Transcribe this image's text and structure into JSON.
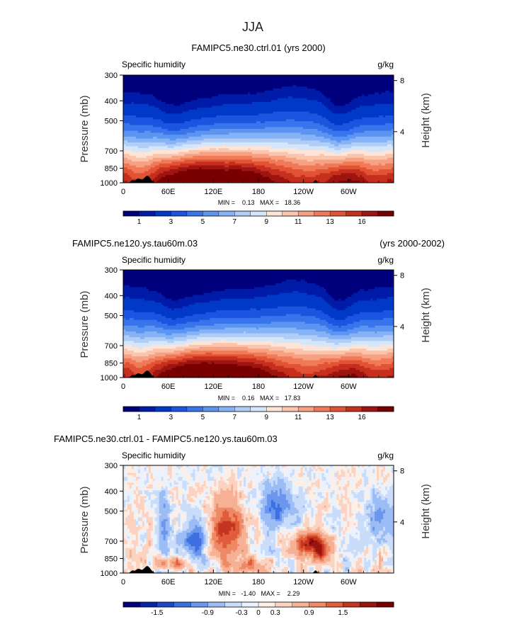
{
  "page_title": "JJA",
  "panels": [
    {
      "title_left": "FAMIPC5.ne30.ctrl.01 (yrs 2000)",
      "title_right": "",
      "var_left": "Specific humidity",
      "var_right": "g/kg",
      "ylabel": "Pressure (mb)",
      "y2label": "Height (km)",
      "minmax": "MIN =    0.13   MAX =   18.36",
      "colorbar_labels": [
        "1",
        "3",
        "5",
        "7",
        "9",
        "11",
        "13",
        "16"
      ]
    },
    {
      "title_left": "FAMIPC5.ne120.ys.tau60m.03",
      "title_right": "(yrs 2000-2002)",
      "var_left": "Specific humidity",
      "var_right": "g/kg",
      "ylabel": "Pressure (mb)",
      "y2label": "Height (km)",
      "minmax": "MIN =    0.16   MAX =   17.83",
      "colorbar_labels": [
        "1",
        "3",
        "5",
        "7",
        "9",
        "11",
        "13",
        "16"
      ]
    },
    {
      "title_left": "FAMIPC5.ne30.ctrl.01 - FAMIPC5.ne120.ys.tau60m.03",
      "title_right": "",
      "var_left": "Specific humidity",
      "var_right": "g/kg",
      "ylabel": "Pressure (mb)",
      "y2label": "Height (km)",
      "minmax": "MIN =   -1.40   MAX =    2.29",
      "colorbar_labels": [
        "-1.5",
        "-0.9",
        "-0.3",
        "0",
        "0.3",
        "0.9",
        "1.5"
      ]
    }
  ],
  "colors": {
    "abs_scale": [
      "#00007d",
      "#001ba8",
      "#0038c8",
      "#1b55df",
      "#3874ec",
      "#5c94f2",
      "#86b2f6",
      "#b0cdf8",
      "#d4e6fb",
      "#fde4d6",
      "#fbc5ad",
      "#f7a082",
      "#f07a57",
      "#e25234",
      "#c62f1d",
      "#9d1410",
      "#780000"
    ],
    "diff_scale": [
      "#00007d",
      "#0a23a5",
      "#1f48c9",
      "#3e6fe0",
      "#6a96ee",
      "#9cbcf6",
      "#c9dcfa",
      "#eaf2fd",
      "#fdeee6",
      "#fbd3c0",
      "#f6b094",
      "#ef8865",
      "#e05c3a",
      "#c43420",
      "#9a1410",
      "#780000"
    ],
    "topography": "#000000"
  },
  "chart_data": [
    {
      "type": "heatmap",
      "title": "FAMIPC5.ne30.ctrl.01 (yrs 2000)",
      "subtitle": "Specific humidity",
      "units": "g/kg",
      "ylabel": "Pressure (mb)",
      "y2label": "Height (km)",
      "x_ticks": [
        "0",
        "60E",
        "120E",
        "180",
        "120W",
        "60W"
      ],
      "x_tick_lon": [
        0,
        60,
        120,
        180,
        240,
        300
      ],
      "xlim": [
        0,
        360
      ],
      "y_ticks": [
        300,
        400,
        500,
        700,
        850,
        1000
      ],
      "ylim": [
        1000,
        300
      ],
      "y_scale": "log",
      "y2_ticks": [
        4,
        8
      ],
      "levels": [
        1,
        3,
        5,
        7,
        9,
        11,
        13,
        16
      ],
      "min": 0.13,
      "max": 18.36,
      "grid": false
    },
    {
      "type": "heatmap",
      "title": "FAMIPC5.ne120.ys.tau60m.03",
      "subtitle": "Specific humidity",
      "units": "g/kg",
      "ylabel": "Pressure (mb)",
      "y2label": "Height (km)",
      "x_ticks": [
        "0",
        "60E",
        "120E",
        "180",
        "120W",
        "60W"
      ],
      "x_tick_lon": [
        0,
        60,
        120,
        180,
        240,
        300
      ],
      "xlim": [
        0,
        360
      ],
      "y_ticks": [
        300,
        400,
        500,
        700,
        850,
        1000
      ],
      "ylim": [
        1000,
        300
      ],
      "y_scale": "log",
      "y2_ticks": [
        4,
        8
      ],
      "levels": [
        1,
        3,
        5,
        7,
        9,
        11,
        13,
        16
      ],
      "min": 0.16,
      "max": 17.83,
      "grid": false
    },
    {
      "type": "heatmap",
      "title": "FAMIPC5.ne30.ctrl.01 - FAMIPC5.ne120.ys.tau60m.03",
      "subtitle": "Specific humidity",
      "units": "g/kg",
      "ylabel": "Pressure (mb)",
      "y2label": "Height (km)",
      "x_ticks": [
        "0",
        "60E",
        "120E",
        "180",
        "120W",
        "60W"
      ],
      "x_tick_lon": [
        0,
        60,
        120,
        180,
        240,
        300
      ],
      "xlim": [
        0,
        360
      ],
      "y_ticks": [
        300,
        400,
        500,
        700,
        850,
        1000
      ],
      "ylim": [
        1000,
        300
      ],
      "y_scale": "log",
      "y2_ticks": [
        4,
        8
      ],
      "levels": [
        -1.5,
        -0.9,
        -0.3,
        0,
        0.3,
        0.9,
        1.5
      ],
      "min": -1.4,
      "max": 2.29,
      "grid": false
    }
  ]
}
